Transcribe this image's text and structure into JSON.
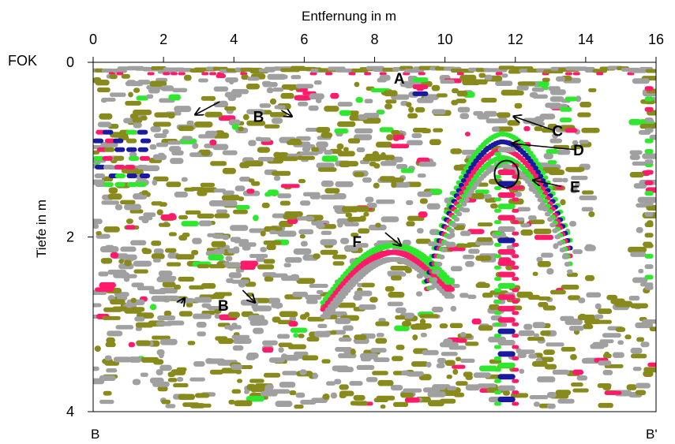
{
  "chart_data": {
    "type": "heatmap",
    "description": "Ground penetrating radar profile",
    "xlabel": "Entfernung in m",
    "ylabel": "Tiefe in m",
    "xlim": [
      0,
      16
    ],
    "ylim": [
      0,
      4
    ],
    "x_ticks": [
      0,
      2,
      4,
      6,
      8,
      10,
      12,
      14,
      16
    ],
    "y_ticks": [
      0,
      2,
      4
    ],
    "reference_label": "FOK",
    "profile_start_label": "B",
    "profile_end_label": "B'",
    "grid": false,
    "amplitude_colors": [
      "#a0a0a0",
      "#888a1c",
      "#ff1a6a",
      "#2ee82e",
      "#1a1aa0"
    ],
    "annotations": [
      {
        "label": "A",
        "x": 8.7,
        "y": 0.18
      },
      {
        "label": "B",
        "x": 4.7,
        "y": 0.62
      },
      {
        "label": "C",
        "x": 13.2,
        "y": 0.78
      },
      {
        "label": "D",
        "x": 13.8,
        "y": 1.0
      },
      {
        "label": "E",
        "x": 13.7,
        "y": 1.42
      },
      {
        "label": "F",
        "x": 7.5,
        "y": 2.05
      },
      {
        "label": "B",
        "x": 3.7,
        "y": 2.78
      }
    ],
    "arrows": [
      {
        "label": "B",
        "from": [
          3.6,
          0.45
        ],
        "to": [
          2.9,
          0.6
        ]
      },
      {
        "label": "B",
        "from": [
          5.35,
          0.55
        ],
        "to": [
          5.65,
          0.62
        ]
      },
      {
        "label": "B",
        "from": [
          2.5,
          2.76
        ],
        "to": [
          2.6,
          2.7
        ]
      },
      {
        "label": "B",
        "from": [
          4.25,
          2.61
        ],
        "to": [
          4.6,
          2.75
        ]
      },
      {
        "label": "C",
        "from": [
          13.1,
          0.78
        ],
        "to": [
          11.95,
          0.62
        ]
      },
      {
        "label": "D",
        "from": [
          13.7,
          1.0
        ],
        "to": [
          11.9,
          0.93
        ]
      },
      {
        "label": "E",
        "from": [
          13.3,
          1.42
        ],
        "to": [
          12.5,
          1.35
        ]
      },
      {
        "label": "F",
        "from": [
          8.3,
          1.95
        ],
        "to": [
          8.75,
          2.1
        ]
      }
    ],
    "marker_circle": {
      "x": 11.75,
      "y": 1.28,
      "radius_m": 0.62
    }
  }
}
